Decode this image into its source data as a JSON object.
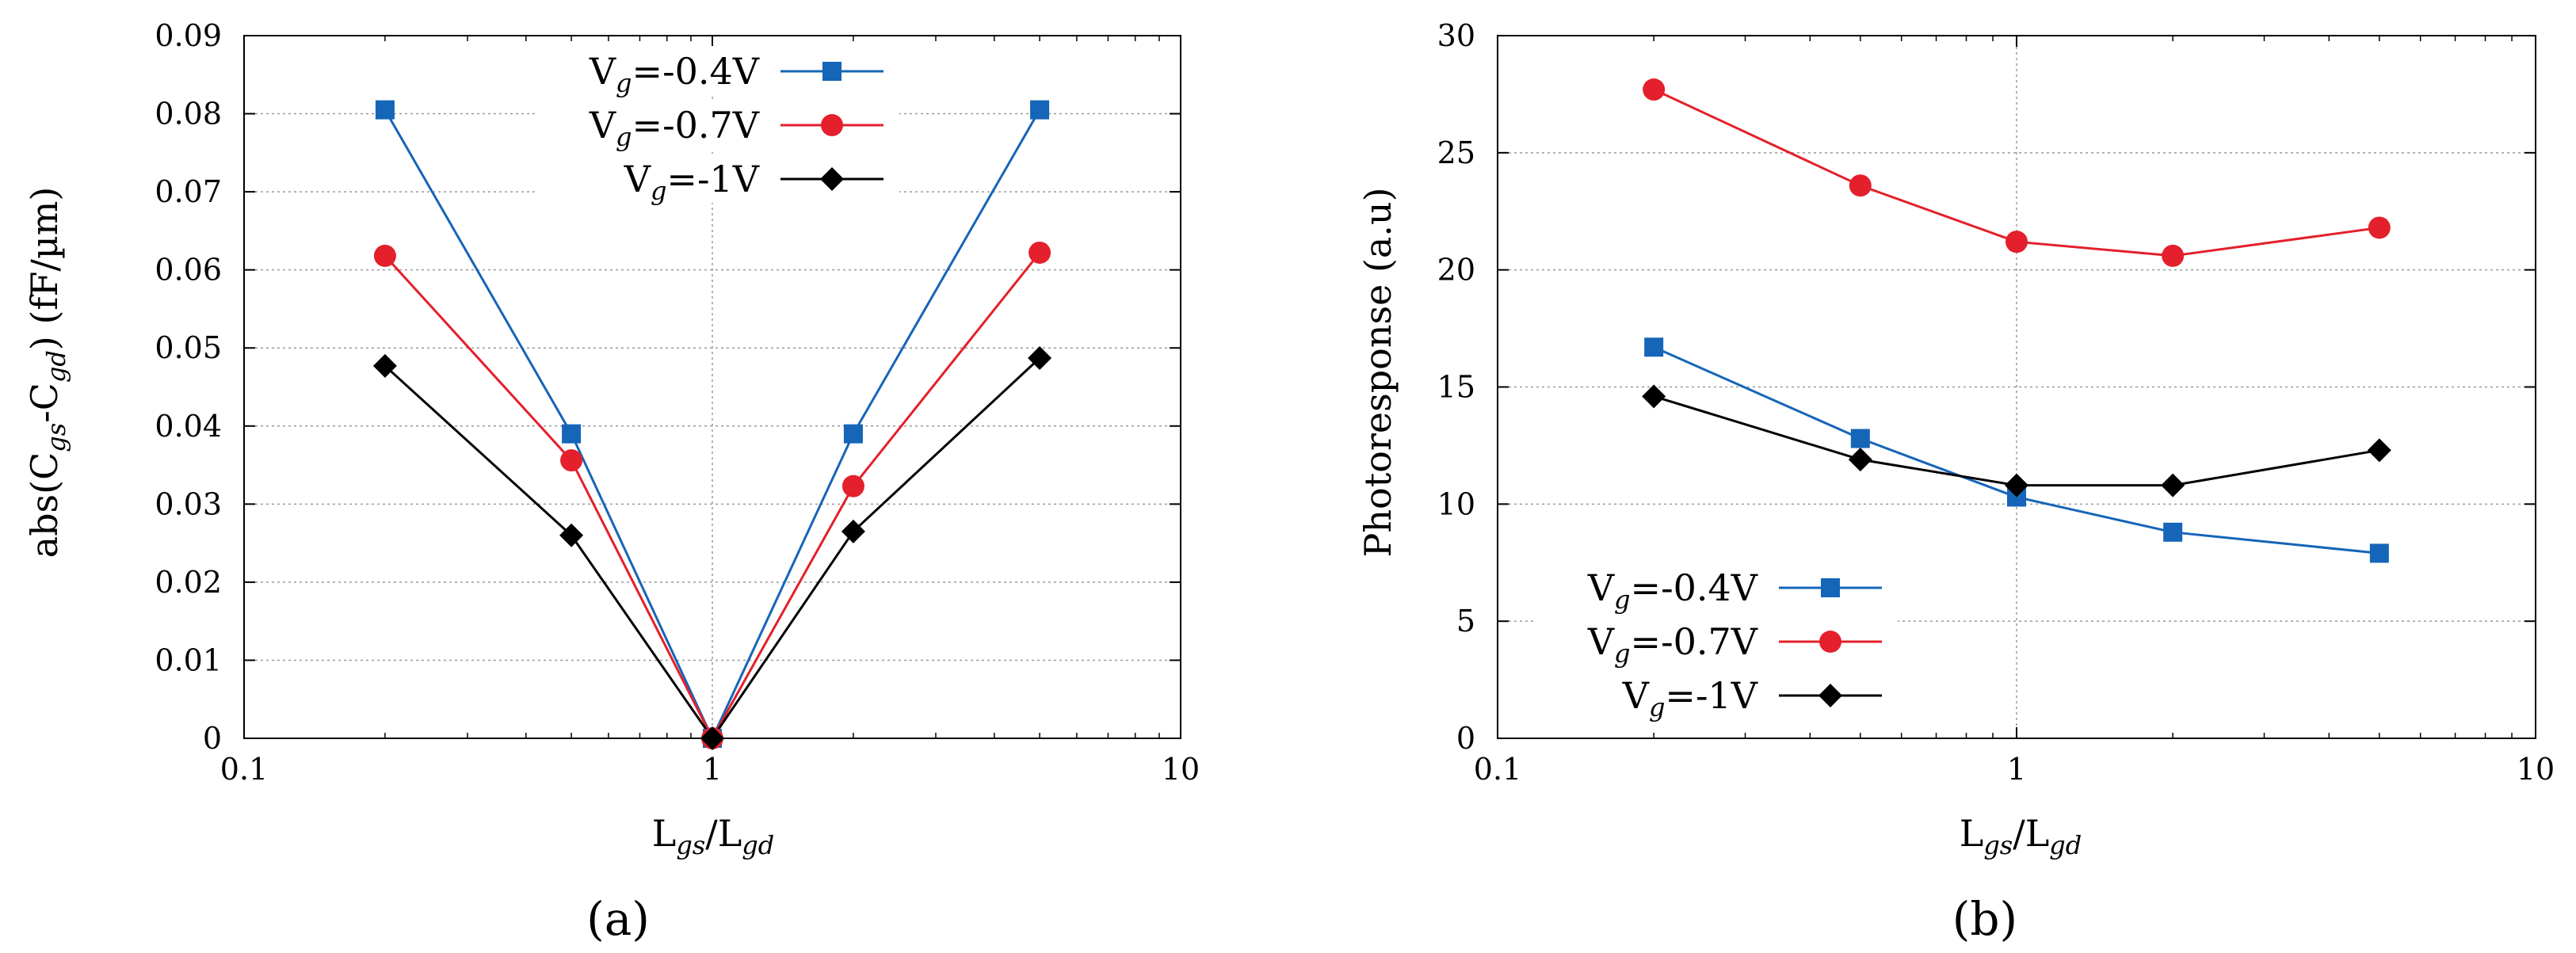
{
  "figure": {
    "panel_a_label": "(a)",
    "panel_b_label": "(b)"
  },
  "chart_data": [
    {
      "type": "line",
      "panel": "(a)",
      "title": "",
      "xscale": "log",
      "xlim": [
        0.1,
        10
      ],
      "ylim": [
        0,
        0.09
      ],
      "xticks": [
        0.1,
        1,
        10
      ],
      "xtick_labels": [
        "0.1",
        "1",
        "10"
      ],
      "yticks": [
        0,
        0.01,
        0.02,
        0.03,
        0.04,
        0.05,
        0.06,
        0.07,
        0.08,
        0.09
      ],
      "ytick_labels": [
        "0",
        "0.01",
        "0.02",
        "0.03",
        "0.04",
        "0.05",
        "0.06",
        "0.07",
        "0.08",
        "0.09"
      ],
      "xlabel": {
        "main": "L",
        "sub1": "gs",
        "mid": "/L",
        "sub2": "gd"
      },
      "ylabel": {
        "p1": "abs(C",
        "sub1": "gs",
        "p2": "-C",
        "sub2": "gd",
        "p3": ")  (fF/µm)"
      },
      "grid": true,
      "legend_position": "top-center",
      "x": [
        0.2,
        0.5,
        1,
        2,
        5
      ],
      "series": [
        {
          "name_main": "V",
          "name_sub": "g",
          "name_rest": "=-0.4V",
          "marker": "square",
          "color": "#1565b8",
          "values": [
            0.0805,
            0.039,
            0.0,
            0.039,
            0.0805
          ]
        },
        {
          "name_main": "V",
          "name_sub": "g",
          "name_rest": "=-0.7V",
          "marker": "circle",
          "color": "#e3202b",
          "values": [
            0.0618,
            0.0356,
            0.0,
            0.0323,
            0.0622
          ]
        },
        {
          "name_main": "V",
          "name_sub": "g",
          "name_rest": "=-1V",
          "marker": "diamond",
          "color": "#000000",
          "values": [
            0.0477,
            0.026,
            0.0,
            0.0265,
            0.0487
          ]
        }
      ]
    },
    {
      "type": "line",
      "panel": "(b)",
      "title": "",
      "xscale": "log",
      "xlim": [
        0.1,
        10
      ],
      "ylim": [
        0,
        30
      ],
      "xticks": [
        0.1,
        1,
        10
      ],
      "xtick_labels": [
        "0.1",
        "1",
        "10"
      ],
      "yticks": [
        0,
        5,
        10,
        15,
        20,
        25,
        30
      ],
      "ytick_labels": [
        "0",
        "5",
        "10",
        "15",
        "20",
        "25",
        "30"
      ],
      "xlabel": {
        "main": "L",
        "sub1": "gs",
        "mid": "/L",
        "sub2": "gd"
      },
      "ylabel": {
        "text": "Photoresponse  (a.u)"
      },
      "grid": true,
      "legend_position": "bottom-left",
      "x": [
        0.2,
        0.5,
        1,
        2,
        5
      ],
      "series": [
        {
          "name_main": "V",
          "name_sub": "g",
          "name_rest": "=-0.4V",
          "marker": "square",
          "color": "#1565b8",
          "values": [
            16.7,
            12.8,
            10.3,
            8.8,
            7.9
          ]
        },
        {
          "name_main": "V",
          "name_sub": "g",
          "name_rest": "=-0.7V",
          "marker": "circle",
          "color": "#e3202b",
          "values": [
            27.7,
            23.6,
            21.2,
            20.6,
            21.8
          ]
        },
        {
          "name_main": "V",
          "name_sub": "g",
          "name_rest": "=-1V",
          "marker": "diamond",
          "color": "#000000",
          "values": [
            14.6,
            11.9,
            10.8,
            10.8,
            12.3
          ]
        }
      ]
    }
  ]
}
